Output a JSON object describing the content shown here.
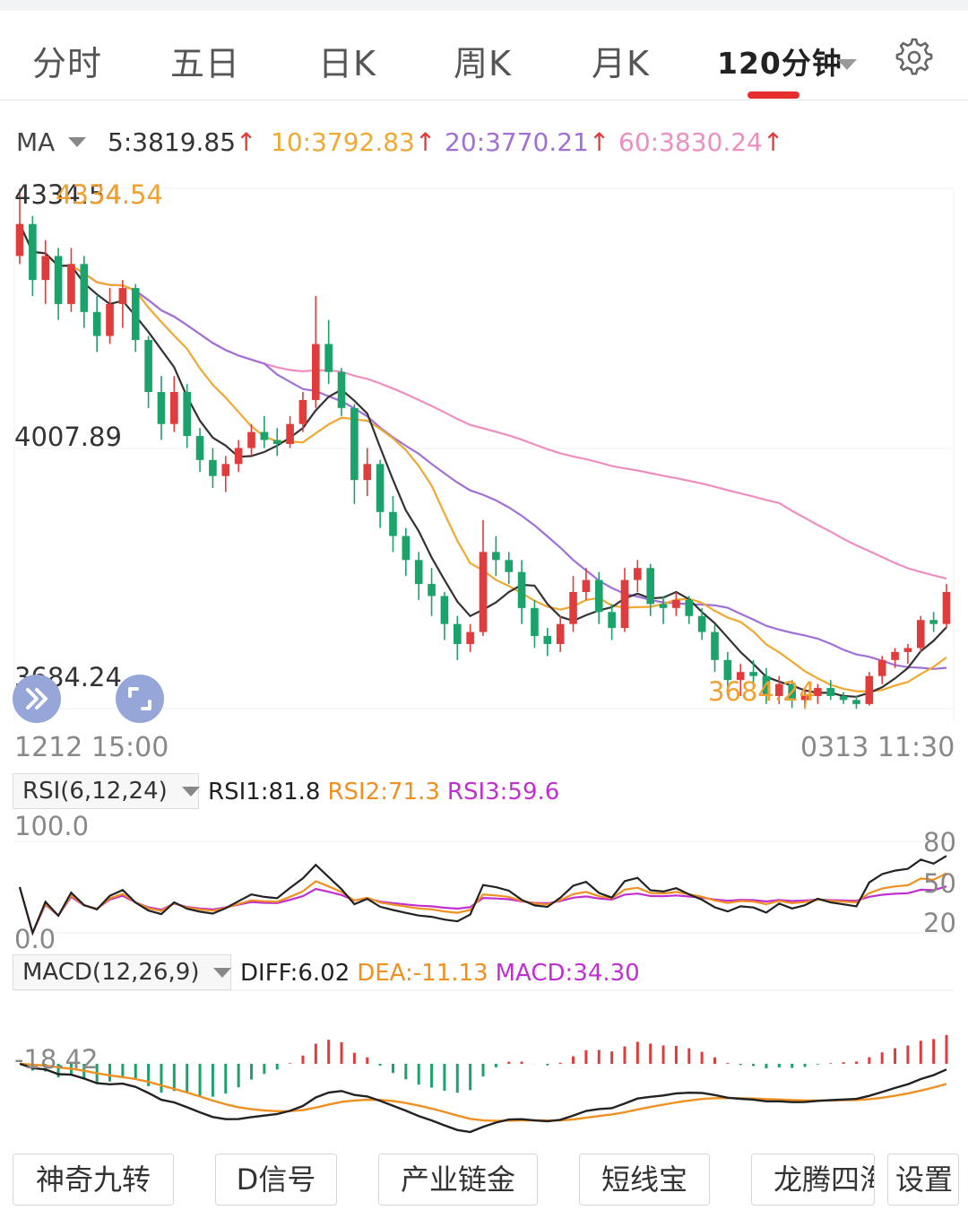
{
  "tabs": [
    {
      "label": "分时",
      "active": false
    },
    {
      "label": "五日",
      "active": false
    },
    {
      "label": "日K",
      "active": false
    },
    {
      "label": "周K",
      "active": false
    },
    {
      "label": "月K",
      "active": false
    },
    {
      "label": "120分钟",
      "active": true
    }
  ],
  "settings_icon": "gear-icon",
  "ma_legend": {
    "label": "MA",
    "ma5": "5:3819.85",
    "ma10": "10:3792.83",
    "ma20": "20:3770.21",
    "ma60": "60:3830.24",
    "arrow": "↑",
    "colors": {
      "ma5": "#333333",
      "ma10": "#f0a830",
      "ma20": "#a070d8",
      "ma60": "#ee8ec0"
    }
  },
  "price_axis": {
    "high": "4334.54",
    "mid": "4007.89",
    "low": "3684.24"
  },
  "annotations": {
    "max_label": "4334.54",
    "min_label": "3684.24"
  },
  "time_axis": {
    "start": "1212 15:00",
    "end": "0313 11:30"
  },
  "rsi": {
    "selector": "RSI(6,12,24)",
    "rsi1": "RSI1:81.8",
    "rsi2": "RSI2:71.3",
    "rsi3": "RSI3:59.6",
    "top": "100.0",
    "bottom": "0.0",
    "ticks": [
      "80",
      "50",
      "20"
    ]
  },
  "macd": {
    "selector": "MACD(12,26,9)",
    "diff": "DIFF:6.02",
    "dea": "DEA:-11.13",
    "macd": "MACD:34.30",
    "axis_label": "-18.42"
  },
  "bottom_buttons": [
    "神奇九转",
    "D信号",
    "产业链金",
    "短线宝",
    "龙腾四海",
    "设置"
  ],
  "colors": {
    "up": "#e03c3c",
    "down": "#1aa36a",
    "active_tab": "#e62e2e"
  },
  "chart_data": {
    "type": "candlestick",
    "period": "120分钟",
    "x_range": [
      "1212 15:00",
      "0313 11:30"
    ],
    "y_range": [
      3684.24,
      4334.54
    ],
    "ohlc_estimated": [
      [
        4250,
        4334,
        4240,
        4290
      ],
      [
        4290,
        4300,
        4200,
        4220
      ],
      [
        4220,
        4270,
        4190,
        4250
      ],
      [
        4250,
        4260,
        4170,
        4190
      ],
      [
        4190,
        4260,
        4180,
        4240
      ],
      [
        4240,
        4250,
        4160,
        4180
      ],
      [
        4180,
        4200,
        4130,
        4150
      ],
      [
        4150,
        4210,
        4140,
        4190
      ],
      [
        4190,
        4220,
        4160,
        4210
      ],
      [
        4210,
        4215,
        4130,
        4145
      ],
      [
        4145,
        4150,
        4060,
        4080
      ],
      [
        4080,
        4100,
        4020,
        4040
      ],
      [
        4040,
        4100,
        4030,
        4080
      ],
      [
        4080,
        4090,
        4010,
        4025
      ],
      [
        4025,
        4035,
        3980,
        3995
      ],
      [
        3995,
        4010,
        3960,
        3975
      ],
      [
        3975,
        4000,
        3955,
        3990
      ],
      [
        3990,
        4020,
        3980,
        4010
      ],
      [
        4010,
        4040,
        4000,
        4030
      ],
      [
        4030,
        4050,
        4010,
        4020
      ],
      [
        4020,
        4035,
        4000,
        4015
      ],
      [
        4015,
        4050,
        4010,
        4040
      ],
      [
        4040,
        4080,
        4030,
        4070
      ],
      [
        4070,
        4200,
        4060,
        4140
      ],
      [
        4140,
        4170,
        4090,
        4105
      ],
      [
        4105,
        4110,
        4050,
        4060
      ],
      [
        4060,
        4065,
        3940,
        3970
      ],
      [
        3970,
        4010,
        3950,
        3990
      ],
      [
        3990,
        3995,
        3910,
        3930
      ],
      [
        3930,
        3950,
        3880,
        3900
      ],
      [
        3900,
        3910,
        3850,
        3870
      ],
      [
        3870,
        3880,
        3820,
        3840
      ],
      [
        3840,
        3860,
        3800,
        3825
      ],
      [
        3825,
        3830,
        3770,
        3790
      ],
      [
        3790,
        3800,
        3745,
        3765
      ],
      [
        3765,
        3790,
        3755,
        3780
      ],
      [
        3780,
        3920,
        3775,
        3880
      ],
      [
        3880,
        3900,
        3850,
        3870
      ],
      [
        3870,
        3880,
        3840,
        3855
      ],
      [
        3855,
        3870,
        3790,
        3810
      ],
      [
        3810,
        3820,
        3760,
        3775
      ],
      [
        3775,
        3785,
        3750,
        3765
      ],
      [
        3765,
        3800,
        3755,
        3790
      ],
      [
        3790,
        3850,
        3780,
        3830
      ],
      [
        3830,
        3860,
        3820,
        3845
      ],
      [
        3845,
        3855,
        3790,
        3805
      ],
      [
        3805,
        3815,
        3770,
        3785
      ],
      [
        3785,
        3860,
        3780,
        3845
      ],
      [
        3845,
        3870,
        3830,
        3860
      ],
      [
        3860,
        3865,
        3800,
        3815
      ],
      [
        3815,
        3825,
        3790,
        3810
      ],
      [
        3810,
        3830,
        3800,
        3820
      ],
      [
        3820,
        3825,
        3790,
        3800
      ],
      [
        3800,
        3810,
        3770,
        3780
      ],
      [
        3780,
        3790,
        3730,
        3745
      ],
      [
        3745,
        3755,
        3710,
        3720
      ],
      [
        3720,
        3740,
        3700,
        3730
      ],
      [
        3730,
        3745,
        3710,
        3725
      ],
      [
        3725,
        3735,
        3690,
        3700
      ],
      [
        3700,
        3725,
        3690,
        3715
      ],
      [
        3715,
        3720,
        3685,
        3695
      ],
      [
        3695,
        3710,
        3684,
        3700
      ],
      [
        3700,
        3715,
        3690,
        3710
      ],
      [
        3710,
        3720,
        3695,
        3700
      ],
      [
        3700,
        3705,
        3690,
        3695
      ],
      [
        3695,
        3700,
        3684,
        3690
      ],
      [
        3690,
        3730,
        3688,
        3725
      ],
      [
        3725,
        3750,
        3715,
        3745
      ],
      [
        3745,
        3760,
        3735,
        3755
      ],
      [
        3755,
        3765,
        3740,
        3760
      ],
      [
        3760,
        3800,
        3755,
        3795
      ],
      [
        3795,
        3805,
        3780,
        3790
      ],
      [
        3790,
        3840,
        3785,
        3830
      ]
    ]
  }
}
